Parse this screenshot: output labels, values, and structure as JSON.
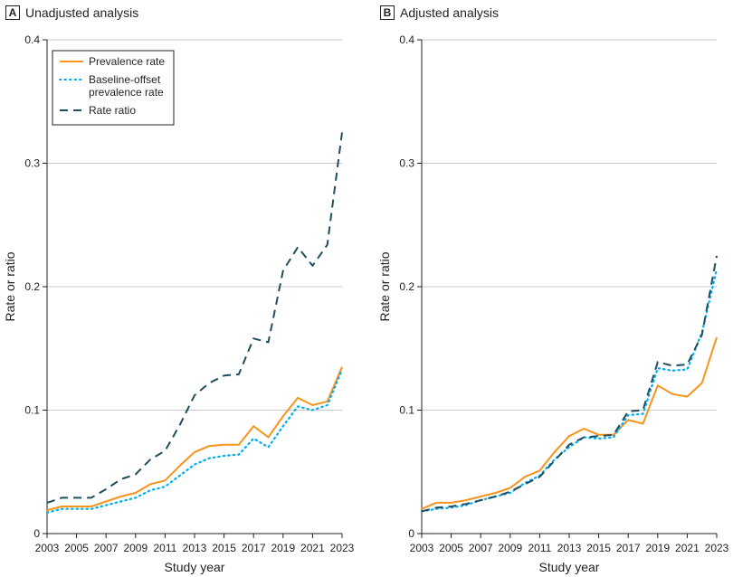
{
  "chart_data": [
    {
      "type": "line",
      "panel_letter": "A",
      "title": "Unadjusted analysis",
      "xlabel": "Study year",
      "ylabel": "Rate or ratio",
      "xlim": [
        2003,
        2023
      ],
      "ylim": [
        0,
        0.4
      ],
      "x_ticks": [
        "2003",
        "2005",
        "2007",
        "2009",
        "2011",
        "2013",
        "2015",
        "2017",
        "2019",
        "2021",
        "2023"
      ],
      "y_ticks": [
        "0",
        "0.1",
        "0.2",
        "0.3",
        "0.4"
      ],
      "grid": "horizontal",
      "legend_position": "top-left",
      "x": [
        2003,
        2004,
        2005,
        2006,
        2007,
        2008,
        2009,
        2010,
        2011,
        2012,
        2013,
        2014,
        2015,
        2016,
        2017,
        2018,
        2019,
        2020,
        2021,
        2022,
        2023
      ],
      "series": [
        {
          "name": "Prevalence rate",
          "style": "solid",
          "color": "#f7941d",
          "values": [
            0.019,
            0.022,
            0.022,
            0.022,
            0.026,
            0.03,
            0.033,
            0.04,
            0.043,
            0.055,
            0.066,
            0.071,
            0.072,
            0.072,
            0.087,
            0.078,
            0.095,
            0.11,
            0.104,
            0.107,
            0.135
          ]
        },
        {
          "name": "Baseline-offset\nprevalence rate",
          "style": "dotted",
          "color": "#00aeef",
          "values": [
            0.017,
            0.02,
            0.02,
            0.02,
            0.023,
            0.026,
            0.029,
            0.035,
            0.038,
            0.047,
            0.056,
            0.061,
            0.063,
            0.064,
            0.077,
            0.07,
            0.087,
            0.103,
            0.1,
            0.104,
            0.133
          ]
        },
        {
          "name": "Rate ratio",
          "style": "dashed",
          "color": "#1f4e5f",
          "values": [
            0.025,
            0.029,
            0.029,
            0.029,
            0.036,
            0.044,
            0.048,
            0.06,
            0.067,
            0.088,
            0.112,
            0.122,
            0.128,
            0.129,
            0.158,
            0.155,
            0.213,
            0.232,
            0.217,
            0.234,
            0.325
          ]
        }
      ]
    },
    {
      "type": "line",
      "panel_letter": "B",
      "title": "Adjusted analysis",
      "xlabel": "Study year",
      "ylabel": "Rate or ratio",
      "xlim": [
        2003,
        2023
      ],
      "ylim": [
        0,
        0.4
      ],
      "x_ticks": [
        "2003",
        "2005",
        "2007",
        "2009",
        "2011",
        "2013",
        "2015",
        "2017",
        "2019",
        "2021",
        "2023"
      ],
      "y_ticks": [
        "0",
        "0.1",
        "0.2",
        "0.3",
        "0.4"
      ],
      "grid": "horizontal",
      "x": [
        2003,
        2004,
        2005,
        2006,
        2007,
        2008,
        2009,
        2010,
        2011,
        2012,
        2013,
        2014,
        2015,
        2016,
        2017,
        2018,
        2019,
        2020,
        2021,
        2022,
        2023
      ],
      "series": [
        {
          "name": "Prevalence rate",
          "style": "solid",
          "color": "#f7941d",
          "values": [
            0.02,
            0.025,
            0.025,
            0.027,
            0.03,
            0.033,
            0.037,
            0.046,
            0.051,
            0.066,
            0.079,
            0.085,
            0.08,
            0.08,
            0.092,
            0.089,
            0.12,
            0.113,
            0.111,
            0.122,
            0.159
          ]
        },
        {
          "name": "Baseline-offset prevalence rate",
          "style": "dotted",
          "color": "#00aeef",
          "values": [
            0.018,
            0.02,
            0.021,
            0.023,
            0.027,
            0.03,
            0.033,
            0.041,
            0.047,
            0.06,
            0.07,
            0.078,
            0.077,
            0.078,
            0.096,
            0.097,
            0.134,
            0.132,
            0.133,
            0.163,
            0.214
          ]
        },
        {
          "name": "Rate ratio",
          "style": "dashed",
          "color": "#1f4e5f",
          "values": [
            0.018,
            0.021,
            0.022,
            0.024,
            0.027,
            0.03,
            0.034,
            0.04,
            0.046,
            0.059,
            0.072,
            0.078,
            0.079,
            0.08,
            0.099,
            0.1,
            0.139,
            0.136,
            0.137,
            0.161,
            0.225
          ]
        }
      ]
    }
  ]
}
